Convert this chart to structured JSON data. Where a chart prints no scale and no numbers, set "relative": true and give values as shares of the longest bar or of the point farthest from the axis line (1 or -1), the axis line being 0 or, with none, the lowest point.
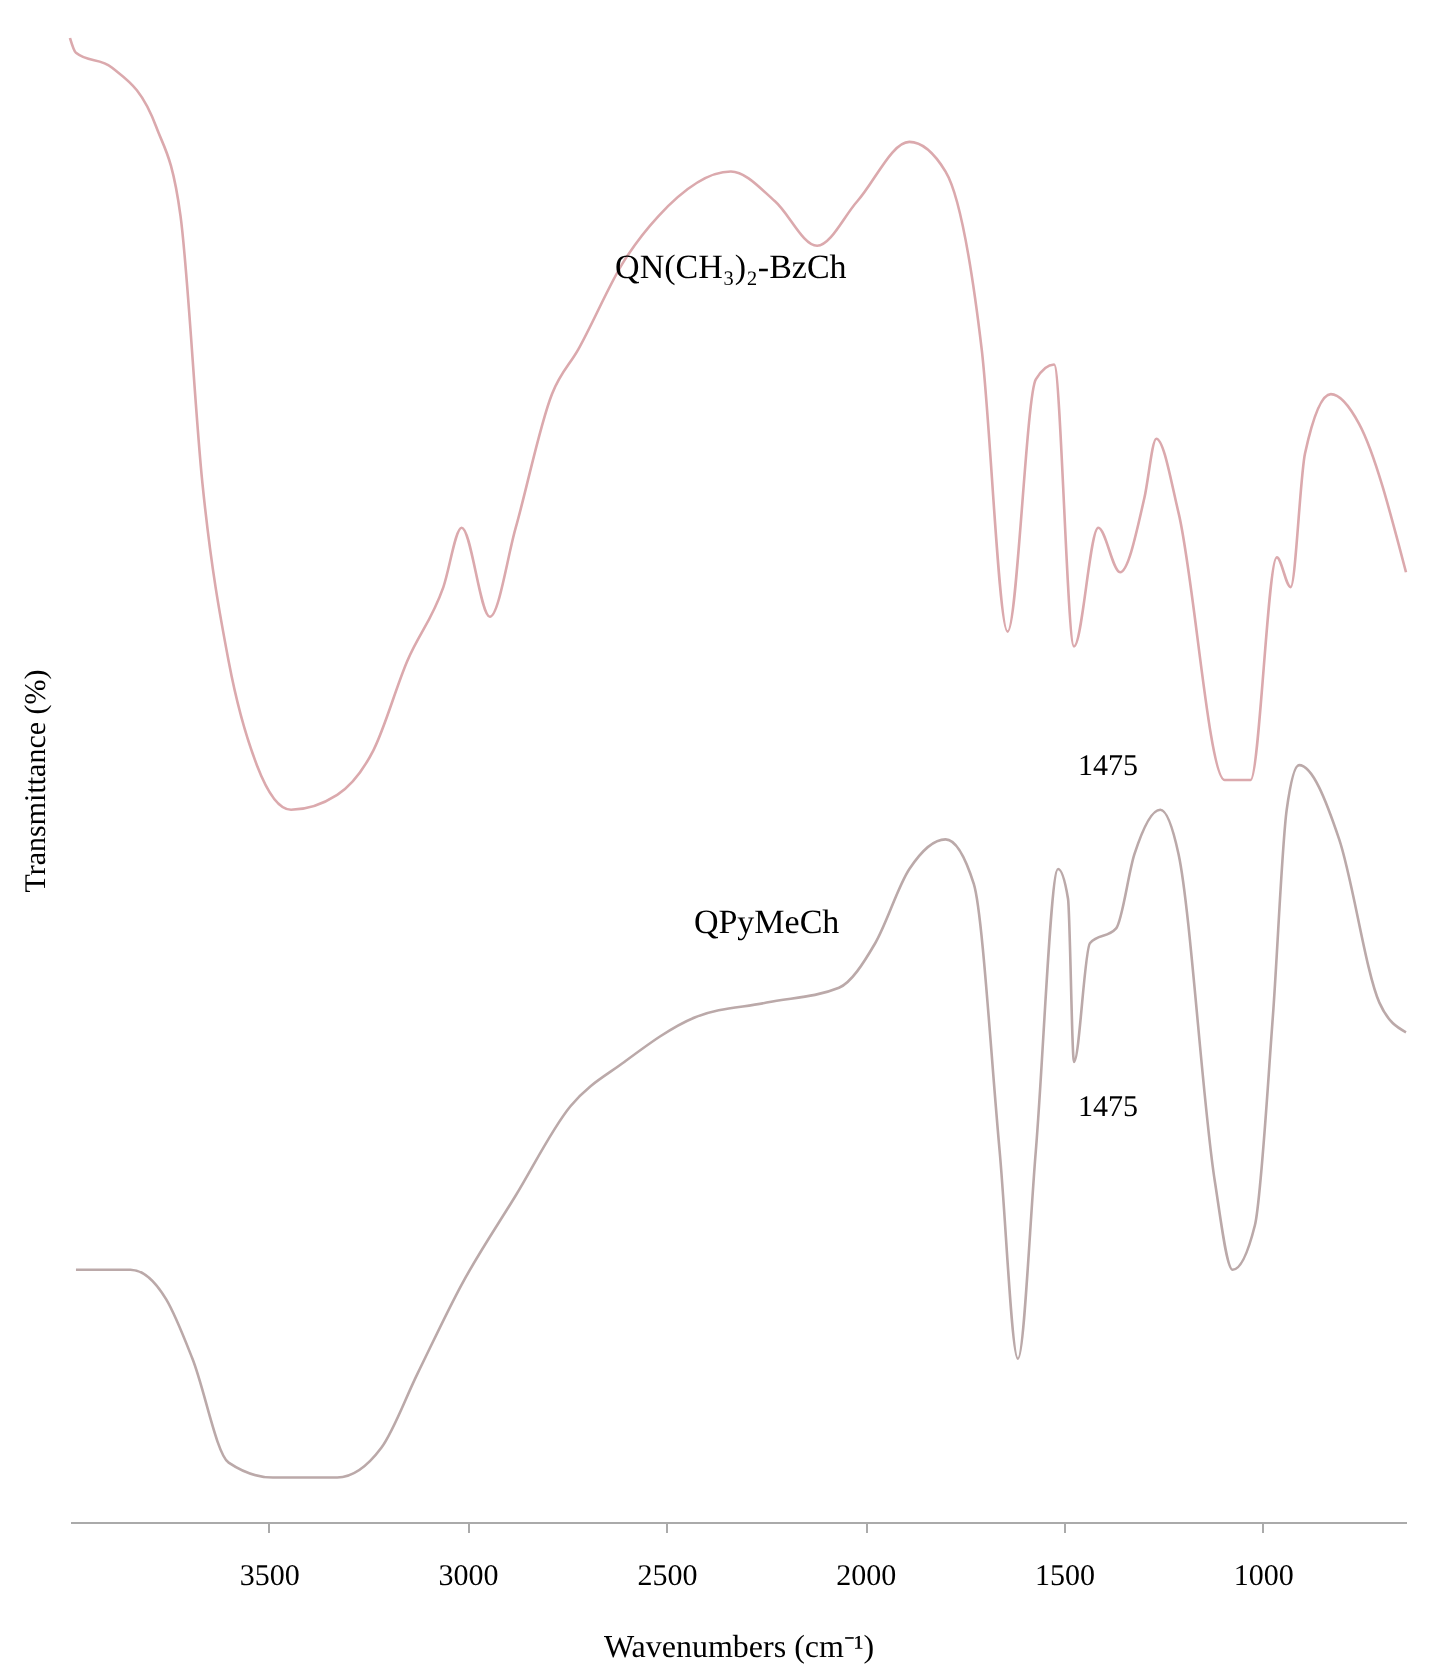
{
  "chart_data": {
    "type": "line",
    "relative": true,
    "xlabel": "Wavenumbers (cm⁻¹)",
    "ylabel": "Transmittance (%)",
    "xlim": [
      4000,
      640
    ],
    "xticks": [
      3500,
      3000,
      2500,
      2000,
      1500,
      1000
    ],
    "tick_labels": "x",
    "grid": false,
    "marker": "none",
    "line_style": "solid",
    "series": [
      {
        "name": "QN(CH₃)₂-BzCh",
        "color": "#dba9ad",
        "x": [
          4000,
          3985,
          3894,
          3783,
          3722,
          3667,
          3601,
          3530,
          3444,
          3328,
          3237,
          3152,
          3061,
          3015,
          2944,
          2879,
          2788,
          2722,
          2606,
          2520,
          2338,
          2227,
          2121,
          2020,
          1889,
          1798,
          1707,
          1642,
          1571,
          1525,
          1475,
          1414,
          1359,
          1298,
          1268,
          1212,
          1096,
          1031,
          965,
          930,
          894,
          829,
          758,
          640
        ],
        "values": [
          1,
          0.99,
          0.98,
          0.94,
          0.88,
          0.7,
          0.58,
          0.51,
          0.48,
          0.49,
          0.52,
          0.58,
          0.63,
          0.67,
          0.61,
          0.67,
          0.76,
          0.79,
          0.85,
          0.88,
          0.91,
          0.89,
          0.86,
          0.89,
          0.93,
          0.91,
          0.79,
          0.6,
          0.77,
          0.78,
          0.59,
          0.67,
          0.64,
          0.69,
          0.73,
          0.68,
          0.5,
          0.5,
          0.65,
          0.63,
          0.72,
          0.76,
          0.74,
          0.64
        ]
      },
      {
        "name": "QPyMeCh",
        "color": "#bba9a9",
        "x": [
          3985,
          3848,
          3758,
          3692,
          3601,
          3490,
          3328,
          3217,
          3126,
          3015,
          2879,
          2742,
          2606,
          2429,
          2248,
          2066,
          1975,
          1889,
          1798,
          1727,
          1662,
          1616,
          1571,
          1515,
          1490,
          1475,
          1435,
          1369,
          1323,
          1258,
          1212,
          1121,
          1076,
          1020,
          975,
          940,
          909,
          808,
          707,
          640
        ],
        "values": [
          0.17,
          0.17,
          0.15,
          0.11,
          0.04,
          0.03,
          0.03,
          0.05,
          0.1,
          0.16,
          0.22,
          0.28,
          0.31,
          0.34,
          0.35,
          0.36,
          0.39,
          0.44,
          0.46,
          0.43,
          0.25,
          0.11,
          0.25,
          0.44,
          0.42,
          0.31,
          0.39,
          0.4,
          0.45,
          0.48,
          0.45,
          0.23,
          0.17,
          0.2,
          0.34,
          0.48,
          0.51,
          0.46,
          0.35,
          0.33
        ]
      }
    ],
    "annotations": [
      "1475",
      "1475"
    ]
  }
}
